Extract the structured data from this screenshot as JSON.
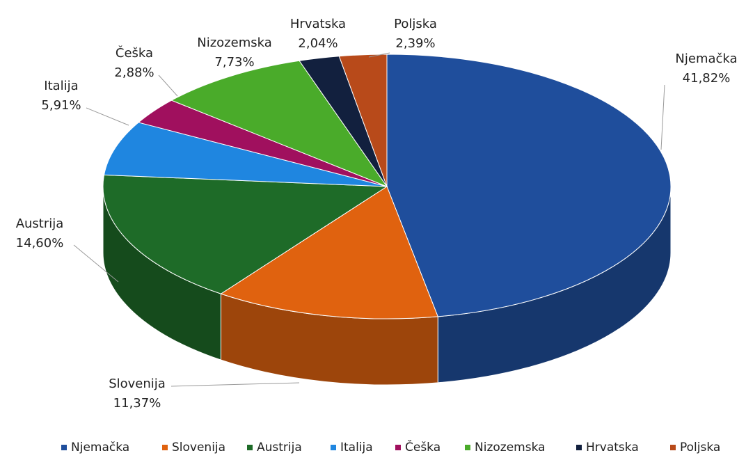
{
  "chart_data": {
    "type": "pie3d",
    "categories": [
      "Njemačka",
      "Slovenija",
      "Austrija",
      "Italija",
      "Češka",
      "Nizozemska",
      "Hrvatska",
      "Poljska"
    ],
    "values": [
      41.82,
      11.37,
      14.6,
      5.91,
      2.88,
      7.73,
      2.04,
      2.39
    ],
    "value_labels": [
      "41,82%",
      "11,37%",
      "14,60%",
      "5,91%",
      "2,88%",
      "7,73%",
      "2,04%",
      "2,39%"
    ],
    "colors": [
      "#1f4e9c",
      "#e0620f",
      "#1e6b28",
      "#1f86e0",
      "#a0105e",
      "#4aab2a",
      "#12203e",
      "#b84a1a"
    ],
    "legend": "bottom"
  }
}
